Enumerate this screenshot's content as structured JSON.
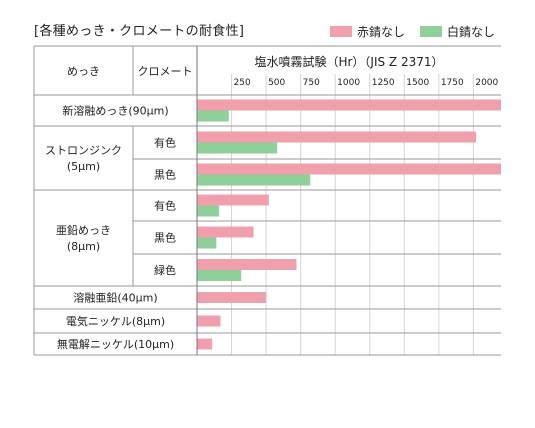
{
  "title": "[各種めっき・クロメートの耐食性]",
  "legend": [
    {
      "label": "赤錆なし",
      "color": "#f0a0ac"
    },
    {
      "label": "白錆なし",
      "color": "#8fcf9a"
    }
  ],
  "chart_data": {
    "type": "bar",
    "orientation": "horizontal",
    "title": "塩水噴霧試験（Hr）（JIS Z 2371）",
    "column_headers": [
      "めっき",
      "クロメート"
    ],
    "xlim": [
      0,
      2200
    ],
    "x_ticks": [
      250,
      500,
      750,
      1000,
      1250,
      1500,
      1750,
      2000
    ],
    "grid": "vertical",
    "groups": [
      {
        "name": "新溶融めっき(90μm)",
        "rows": [
          {
            "chromate": "",
            "red": 2200,
            "white": 230
          }
        ]
      },
      {
        "name": "ストロンジンク\n(5μm)",
        "rows": [
          {
            "chromate": "有色",
            "red": 2020,
            "white": 580
          },
          {
            "chromate": "黒色",
            "red": 2200,
            "white": 820
          }
        ]
      },
      {
        "name": "亜鉛めっき\n(8μm)",
        "rows": [
          {
            "chromate": "有色",
            "red": 520,
            "white": 160
          },
          {
            "chromate": "黒色",
            "red": 410,
            "white": 140
          },
          {
            "chromate": "緑色",
            "red": 720,
            "white": 320
          }
        ]
      },
      {
        "name": "溶融亜鉛(40μm)",
        "rows": [
          {
            "chromate": "",
            "red": 500
          }
        ]
      },
      {
        "name": "電気ニッケル(8μm)",
        "rows": [
          {
            "chromate": "",
            "red": 170
          }
        ]
      },
      {
        "name": "無電解ニッケル(10μm)",
        "rows": [
          {
            "chromate": "",
            "red": 110
          }
        ]
      }
    ]
  }
}
